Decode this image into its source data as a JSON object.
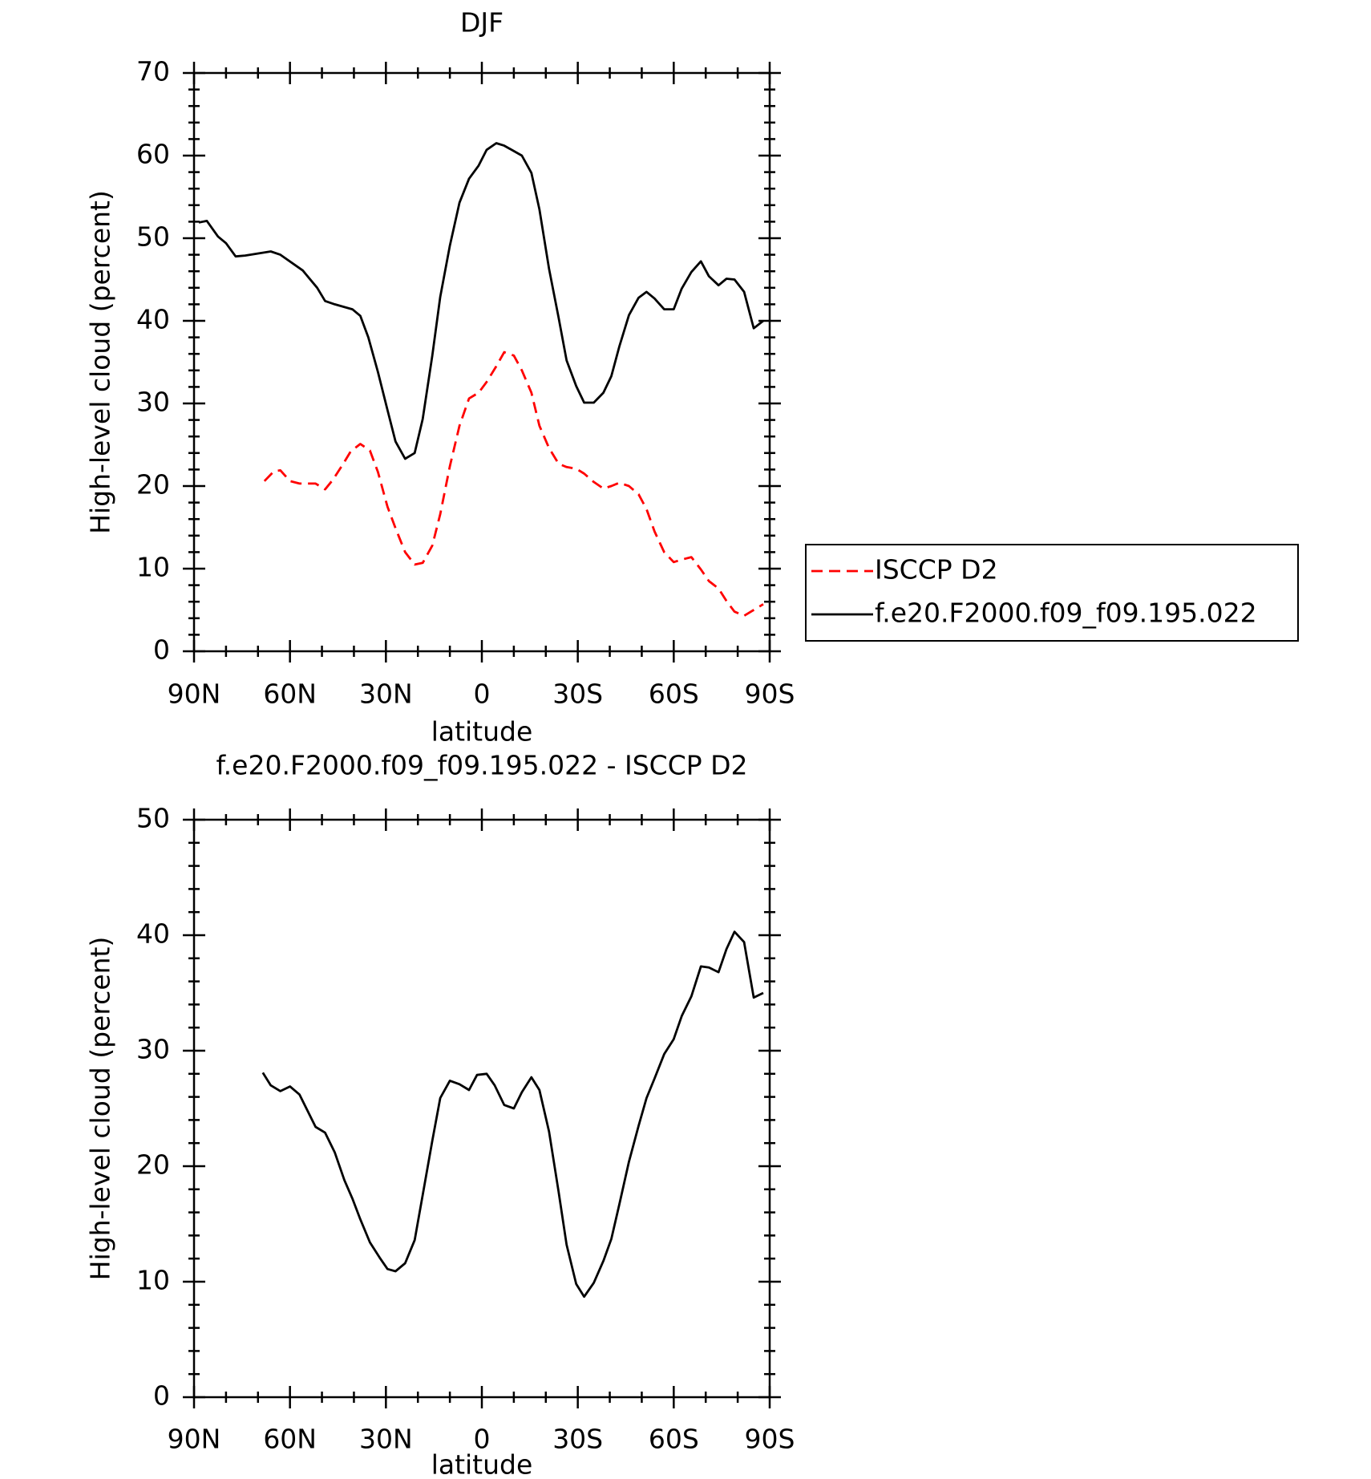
{
  "chart_data": [
    {
      "type": "line",
      "title": "DJF",
      "x_label": "latitude",
      "y_label": "High-level cloud (percent)",
      "xlim": [
        90,
        -90
      ],
      "xticks": [
        {
          "value": 90,
          "label": "90N"
        },
        {
          "value": 60,
          "label": "60N"
        },
        {
          "value": 30,
          "label": "30N"
        },
        0,
        {
          "value": -30,
          "label": "30S"
        },
        {
          "value": -60,
          "label": "60S"
        },
        {
          "value": -90,
          "label": "90S"
        }
      ],
      "ylim": [
        0,
        70
      ],
      "yticks": [
        0,
        10,
        20,
        30,
        40,
        50,
        60,
        70
      ],
      "legend": "right",
      "series": [
        {
          "name": "ISCCP D2",
          "color": "#ff0000",
          "line_style": "dashed",
          "x": [
            68,
            65,
            63,
            60,
            57,
            52,
            49,
            46.5,
            43.5,
            41,
            38,
            35,
            32.5,
            29.5,
            27,
            24,
            21,
            18.5,
            15.5,
            13,
            10,
            7,
            4,
            1,
            -1.5,
            -4.5,
            -7,
            -10,
            -12.5,
            -15.5,
            -18,
            -21,
            -24,
            -26.5,
            -29.5,
            -32,
            -35,
            -38,
            -40.5,
            -43,
            -46,
            -49,
            -51.5,
            -54,
            -57,
            -60,
            -62.5,
            -65.5,
            -68.5,
            -71,
            -74,
            -76.5,
            -79,
            -82,
            -85,
            -88
          ],
          "values": [
            20.6,
            21.8,
            21.9,
            20.6,
            20.3,
            20.3,
            19.6,
            20.8,
            22.6,
            24.2,
            25.1,
            24.3,
            21.7,
            17.5,
            14.9,
            12.0,
            10.5,
            10.7,
            12.8,
            16.6,
            22.4,
            27.3,
            30.6,
            31.3,
            32.6,
            34.5,
            36.2,
            35.8,
            34.0,
            31.3,
            27.3,
            24.6,
            22.7,
            22.3,
            22.1,
            21.5,
            20.5,
            19.7,
            20.0,
            20.4,
            20.0,
            19.0,
            17.2,
            14.5,
            12.0,
            10.8,
            11.1,
            11.4,
            9.9,
            8.5,
            7.6,
            6.1,
            4.8,
            4.3,
            5.0,
            5.7
          ]
        },
        {
          "name": "f.e20.F2000.f09_f09.195.022",
          "color": "#000000",
          "line_style": "solid",
          "x": [
            88.5,
            86,
            82.5,
            80,
            77,
            74,
            66,
            63,
            56,
            51.5,
            49,
            46,
            40.5,
            38,
            35.5,
            32.5,
            29.5,
            27,
            24,
            21,
            18.5,
            15.5,
            13,
            10,
            7,
            4,
            1,
            -1.5,
            -4.5,
            -7,
            -12.5,
            -15.5,
            -18,
            -21,
            -24,
            -26.5,
            -29.5,
            -32,
            -35,
            -38,
            -40.5,
            -43,
            -46,
            -49,
            -51.5,
            -54,
            -57,
            -60,
            -62.5,
            -65.5,
            -68.5,
            -71,
            -74,
            -76.5,
            -79,
            -82,
            -85,
            -88
          ],
          "values": [
            51.9,
            52.1,
            50.2,
            49.4,
            47.8,
            47.9,
            48.4,
            48.0,
            46.1,
            44.0,
            42.4,
            42.0,
            41.4,
            40.6,
            38.0,
            33.8,
            29.2,
            25.4,
            23.3,
            24.0,
            28.1,
            35.8,
            42.9,
            49.1,
            54.3,
            57.2,
            58.8,
            60.7,
            61.5,
            61.2,
            60.0,
            57.9,
            53.5,
            46.3,
            40.4,
            35.2,
            32.1,
            30.1,
            30.1,
            31.3,
            33.3,
            36.9,
            40.7,
            42.8,
            43.5,
            42.7,
            41.4,
            41.4,
            43.9,
            45.9,
            47.2,
            45.4,
            44.3,
            45.1,
            45.0,
            43.5,
            39.1,
            40.0
          ]
        }
      ]
    },
    {
      "type": "line",
      "title": "f.e20.F2000.f09_f09.195.022 - ISCCP D2",
      "x_label": "latitude",
      "y_label": "High-level cloud (percent)",
      "xlim": [
        90,
        -90
      ],
      "xticks": [
        {
          "value": 90,
          "label": "90N"
        },
        {
          "value": 60,
          "label": "60N"
        },
        {
          "value": 30,
          "label": "30N"
        },
        0,
        {
          "value": -30,
          "label": "30S"
        },
        {
          "value": -60,
          "label": "60S"
        },
        {
          "value": -90,
          "label": "90S"
        }
      ],
      "ylim": [
        0,
        50
      ],
      "yticks": [
        0,
        10,
        20,
        30,
        40,
        50
      ],
      "color": "#000000",
      "line_style": "solid",
      "x": [
        68.5,
        66,
        63,
        60,
        57,
        54.5,
        52,
        49,
        46,
        43,
        40.5,
        38,
        35,
        32,
        29.5,
        27,
        24,
        21,
        18.5,
        15.5,
        13,
        10,
        7,
        4,
        1.5,
        -1.5,
        -4,
        -7,
        -10,
        -12.5,
        -15.5,
        -18,
        -21,
        -24,
        -26.5,
        -29.5,
        -32,
        -35,
        -38,
        -40.5,
        -43,
        -46,
        -49,
        -51.5,
        -54,
        -57,
        -60,
        -62.5,
        -65.5,
        -68.5,
        -71,
        -74,
        -76.5,
        -79,
        -82,
        -85,
        -88
      ],
      "values": [
        28.1,
        27.0,
        26.5,
        26.9,
        26.2,
        24.8,
        23.4,
        22.9,
        21.2,
        18.8,
        17.2,
        15.4,
        13.4,
        12.1,
        11.1,
        10.9,
        11.6,
        13.6,
        17.5,
        22.2,
        25.9,
        27.4,
        27.1,
        26.6,
        27.9,
        28.0,
        27.0,
        25.3,
        25.0,
        26.4,
        27.7,
        26.6,
        23.0,
        17.8,
        13.2,
        9.8,
        8.7,
        9.9,
        11.8,
        13.7,
        16.7,
        20.4,
        23.5,
        25.9,
        27.6,
        29.7,
        31.0,
        33.0,
        34.7,
        37.3,
        37.2,
        36.8,
        38.8,
        40.3,
        39.4,
        34.6,
        35.0
      ]
    }
  ]
}
